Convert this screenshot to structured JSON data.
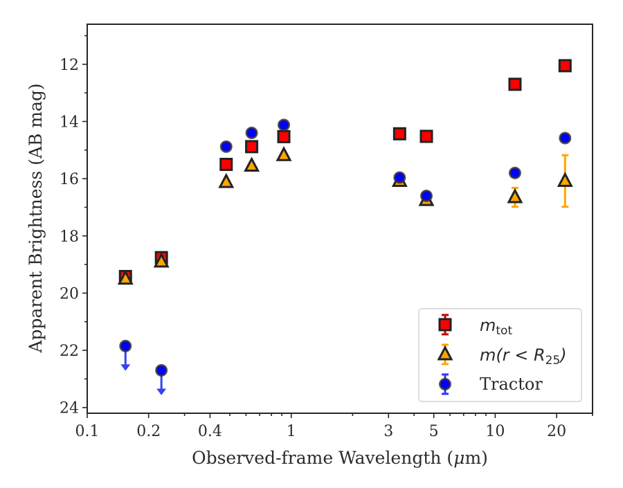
{
  "chart_data": {
    "type": "scatter",
    "title": "",
    "xlabel_prefix": "Observed-frame Wavelength (",
    "xlabel_unit": "μ",
    "xlabel_suffix": "m)",
    "ylabel": "Apparent Brightness (AB mag)",
    "x_scale": "log",
    "xlim": [
      0.1,
      30
    ],
    "ylim": [
      24.2,
      10.6
    ],
    "y_inverted": true,
    "x_ticks": [
      {
        "value": 0.1,
        "label": "0.1"
      },
      {
        "value": 0.2,
        "label": "0.2"
      },
      {
        "value": 0.4,
        "label": "0.4"
      },
      {
        "value": 1,
        "label": "1"
      },
      {
        "value": 3,
        "label": "3"
      },
      {
        "value": 5,
        "label": "5"
      },
      {
        "value": 10,
        "label": "10"
      },
      {
        "value": 20,
        "label": "20"
      }
    ],
    "x_minor_ticks": [
      0.3,
      0.5,
      0.6,
      0.7,
      0.8,
      0.9,
      2,
      4,
      6,
      7,
      8,
      9,
      30
    ],
    "y_ticks": [
      {
        "value": 12,
        "label": "12"
      },
      {
        "value": 14,
        "label": "14"
      },
      {
        "value": 16,
        "label": "16"
      },
      {
        "value": 18,
        "label": "18"
      },
      {
        "value": 20,
        "label": "20"
      },
      {
        "value": 22,
        "label": "22"
      },
      {
        "value": 24,
        "label": "24"
      }
    ],
    "y_minor_ticks": [
      11,
      13,
      15,
      17,
      19,
      21,
      23
    ],
    "legend_position": "lower-right",
    "series": [
      {
        "key": "m_tot",
        "label_main": "m",
        "label_sub": "tot",
        "marker": "square",
        "color": "#ff0000",
        "edge_color": "#222222",
        "points": [
          {
            "x": 0.154,
            "y": 19.42,
            "err": 0.12
          },
          {
            "x": 0.231,
            "y": 18.76,
            "err": 0.1
          },
          {
            "x": 0.48,
            "y": 15.5,
            "err": 0.05
          },
          {
            "x": 0.64,
            "y": 14.88,
            "err": 0.05
          },
          {
            "x": 0.92,
            "y": 14.53,
            "err": 0.05
          },
          {
            "x": 3.4,
            "y": 14.43,
            "err": 0.05
          },
          {
            "x": 4.6,
            "y": 14.52,
            "err": 0.05
          },
          {
            "x": 12.5,
            "y": 12.7,
            "err": 0.05
          },
          {
            "x": 22,
            "y": 12.05,
            "err": 0.05
          }
        ]
      },
      {
        "key": "m_r25",
        "label_main": "m(r < R",
        "label_sub": "25",
        "label_end": ")",
        "marker": "triangle",
        "color": "#ffa500",
        "edge_color": "#222222",
        "points": [
          {
            "x": 0.154,
            "y": 19.5,
            "err": 0.1
          },
          {
            "x": 0.231,
            "y": 18.9,
            "err": 0.1
          },
          {
            "x": 0.48,
            "y": 16.12,
            "err": 0.05
          },
          {
            "x": 0.64,
            "y": 15.55,
            "err": 0.05
          },
          {
            "x": 0.92,
            "y": 15.18,
            "err": 0.05
          },
          {
            "x": 3.4,
            "y": 16.08,
            "err": 0.05
          },
          {
            "x": 4.6,
            "y": 16.75,
            "err": 0.05
          },
          {
            "x": 12.5,
            "y": 16.65,
            "err": 0.33
          },
          {
            "x": 22,
            "y": 16.08,
            "err": 0.9
          }
        ]
      },
      {
        "key": "tractor",
        "label_main": "Tractor",
        "marker": "circle",
        "color": "#0000ff",
        "edge_color": "#333333",
        "points": [
          {
            "x": 0.154,
            "y": 21.85,
            "upper_limit": true
          },
          {
            "x": 0.231,
            "y": 22.7,
            "upper_limit": true
          },
          {
            "x": 0.48,
            "y": 14.88,
            "err": 0.05
          },
          {
            "x": 0.64,
            "y": 14.4,
            "err": 0.05
          },
          {
            "x": 0.92,
            "y": 14.12,
            "err": 0.05
          },
          {
            "x": 3.4,
            "y": 15.96,
            "err": 0.05
          },
          {
            "x": 4.6,
            "y": 16.6,
            "err": 0.05
          },
          {
            "x": 12.5,
            "y": 15.8,
            "err": 0.05
          },
          {
            "x": 22,
            "y": 14.58,
            "err": 0.05
          }
        ]
      }
    ]
  }
}
